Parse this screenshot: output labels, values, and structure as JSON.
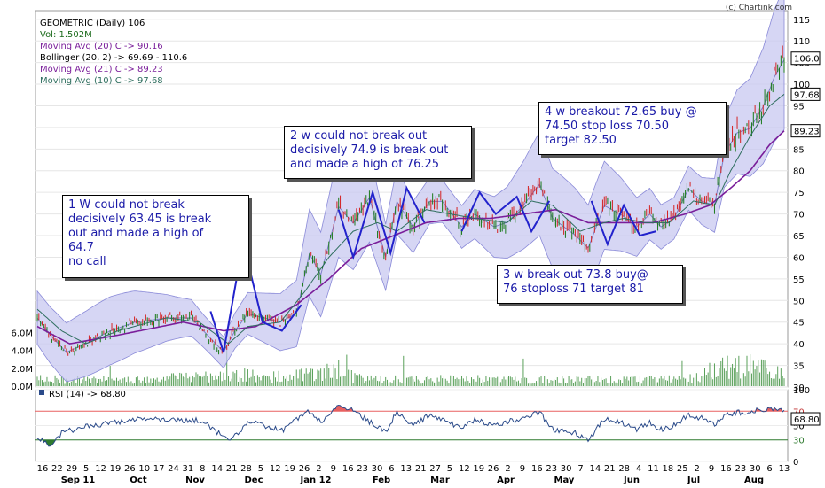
{
  "header": {
    "symbol_line": "GEOMETRIC (Daily) 106",
    "volume_line": "Vol: 1.502M",
    "ma20_line": "Moving Avg (20) C -> 90.16",
    "bollinger_line": "Bollinger (20, 2) -> 69.69 - 110.6",
    "ma21_line": "Moving Avg (21) C -> 89.23",
    "ma10_line": "Moving Avg (10) C -> 97.68",
    "copyright": "(c) Chartink.com",
    "rsi_line": "RSI (14) -> 68.80"
  },
  "colors": {
    "price_up": "#1a7a1a",
    "price_down": "#d42222",
    "band_fill": "#c8c8f0",
    "ma20": "#7e7ec8",
    "ma21": "#7a1e9a",
    "ma10": "#2e6e5e",
    "pattern": "#2222cc",
    "volume": "#5aa05a",
    "rsi_line": "#2a4a8a",
    "rsi_over": "#e86060",
    "rsi_under": "#2e7a2e"
  },
  "annotations": [
    {
      "name": "note-1w",
      "lines": [
        "1 W could not break",
        "decisively 63.45 is break",
        "out and made a high of",
        "64.7",
        "no call"
      ]
    },
    {
      "name": "note-2w",
      "lines": [
        "2 w could not break out",
        "decisively 74.9 is break out",
        "and made a high of 76.25"
      ]
    },
    {
      "name": "note-3w",
      "lines": [
        "3 w break out 73.8 buy@",
        "76 stoploss 71 target 81"
      ]
    },
    {
      "name": "note-4w",
      "lines": [
        "4 w breakout 72.65 buy @",
        "74.50 stop loss 70.50",
        "target 82.50"
      ]
    }
  ],
  "chart_data": [
    {
      "type": "line",
      "name": "price-panel",
      "x_tick_labels": [
        "16",
        "22",
        "29",
        "5",
        "12",
        "19",
        "26",
        "10",
        "17",
        "24",
        "31",
        "8",
        "14",
        "21",
        "28",
        "5",
        "12",
        "19",
        "26",
        "2",
        "9",
        "16",
        "23",
        "30",
        "6",
        "13",
        "21",
        "27",
        "5",
        "12",
        "19",
        "26",
        "2",
        "9",
        "16",
        "23",
        "30",
        "7",
        "14",
        "21",
        "28",
        "4",
        "11",
        "18",
        "25",
        "2",
        "9",
        "16",
        "23",
        "30",
        "6",
        "13"
      ],
      "month_labels": [
        "Sep 11",
        "Oct",
        "Nov",
        "Dec",
        "Jan 12",
        "Feb",
        "Mar",
        "Apr",
        "May",
        "Jun",
        "Jul",
        "Aug"
      ],
      "y_ticks": [
        30,
        35,
        40,
        45,
        50,
        55,
        60,
        65,
        70,
        75,
        80,
        85,
        90,
        95,
        100,
        105,
        110,
        115
      ],
      "ylim": [
        30,
        117
      ],
      "volume_ticks": [
        "0.0M",
        "2.0M",
        "4.0M",
        "6.0M"
      ],
      "volume_max": 8,
      "price_labels": {
        "close": "106.0",
        "ma10": "97.68",
        "ma21": "89.23"
      },
      "close_value": 106.0,
      "ma10_value": 97.68,
      "ma21_value": 89.23,
      "close_anchors": [
        [
          0,
          46
        ],
        [
          8,
          42
        ],
        [
          18,
          38
        ],
        [
          30,
          40
        ],
        [
          45,
          43
        ],
        [
          60,
          45
        ],
        [
          80,
          46
        ],
        [
          95,
          46
        ],
        [
          105,
          42
        ],
        [
          115,
          38
        ],
        [
          122,
          43
        ],
        [
          130,
          47
        ],
        [
          140,
          46
        ],
        [
          150,
          45
        ],
        [
          160,
          47
        ],
        [
          168,
          61
        ],
        [
          175,
          56
        ],
        [
          186,
          72
        ],
        [
          195,
          68
        ],
        [
          205,
          74
        ],
        [
          215,
          60
        ],
        [
          222,
          73
        ],
        [
          232,
          67
        ],
        [
          242,
          73
        ],
        [
          250,
          73
        ],
        [
          262,
          67
        ],
        [
          270,
          70
        ],
        [
          282,
          67
        ],
        [
          290,
          68
        ],
        [
          300,
          72
        ],
        [
          310,
          77
        ],
        [
          318,
          69
        ],
        [
          332,
          65
        ],
        [
          340,
          62
        ],
        [
          350,
          72
        ],
        [
          360,
          70
        ],
        [
          370,
          67
        ],
        [
          378,
          70
        ],
        [
          385,
          67
        ],
        [
          393,
          69
        ],
        [
          402,
          76
        ],
        [
          410,
          73
        ],
        [
          418,
          72
        ],
        [
          424,
          84
        ],
        [
          432,
          89
        ],
        [
          440,
          90
        ],
        [
          448,
          95
        ],
        [
          455,
          102
        ],
        [
          461,
          106
        ]
      ],
      "ma10_anchors": [
        [
          0,
          48
        ],
        [
          15,
          43
        ],
        [
          30,
          40
        ],
        [
          50,
          43
        ],
        [
          80,
          46
        ],
        [
          100,
          45
        ],
        [
          118,
          40
        ],
        [
          130,
          44
        ],
        [
          150,
          45
        ],
        [
          165,
          52
        ],
        [
          180,
          60
        ],
        [
          195,
          66
        ],
        [
          210,
          68
        ],
        [
          222,
          66
        ],
        [
          240,
          71
        ],
        [
          255,
          70
        ],
        [
          270,
          69
        ],
        [
          290,
          68
        ],
        [
          305,
          73
        ],
        [
          318,
          72
        ],
        [
          335,
          66
        ],
        [
          350,
          68
        ],
        [
          362,
          69
        ],
        [
          375,
          68
        ],
        [
          390,
          68
        ],
        [
          405,
          73
        ],
        [
          418,
          72
        ],
        [
          428,
          80
        ],
        [
          440,
          88
        ],
        [
          452,
          95
        ],
        [
          461,
          97.68
        ]
      ],
      "ma21_anchors": [
        [
          0,
          44
        ],
        [
          20,
          40
        ],
        [
          50,
          42
        ],
        [
          90,
          45
        ],
        [
          115,
          43
        ],
        [
          135,
          44
        ],
        [
          160,
          49
        ],
        [
          180,
          55
        ],
        [
          200,
          62
        ],
        [
          220,
          65
        ],
        [
          240,
          68
        ],
        [
          260,
          69
        ],
        [
          280,
          69
        ],
        [
          300,
          70
        ],
        [
          320,
          71
        ],
        [
          340,
          68
        ],
        [
          360,
          68
        ],
        [
          380,
          68
        ],
        [
          400,
          70
        ],
        [
          415,
          72
        ],
        [
          428,
          76
        ],
        [
          440,
          80
        ],
        [
          452,
          86
        ],
        [
          461,
          89.23
        ]
      ],
      "volume_anchors": [
        [
          0,
          1.0
        ],
        [
          20,
          0.8
        ],
        [
          60,
          0.8
        ],
        [
          100,
          1.2
        ],
        [
          120,
          1.6
        ],
        [
          140,
          1.2
        ],
        [
          170,
          1.5
        ],
        [
          180,
          1.9
        ],
        [
          200,
          1.0
        ],
        [
          240,
          0.9
        ],
        [
          300,
          0.9
        ],
        [
          350,
          0.8
        ],
        [
          400,
          0.9
        ],
        [
          425,
          2.5
        ],
        [
          440,
          3.0
        ],
        [
          455,
          1.7
        ],
        [
          461,
          1.5
        ]
      ],
      "pattern_lines": [
        {
          "name": "pattern-1w",
          "points": [
            [
              107,
              47.5
            ],
            [
              115,
              38
            ],
            [
              127,
              63.5
            ],
            [
              139,
              45
            ],
            [
              151,
              43
            ],
            [
              163,
              49
            ]
          ]
        },
        {
          "name": "pattern-2w",
          "points": [
            [
              186,
              71
            ],
            [
              195,
              60
            ],
            [
              207,
              75
            ],
            [
              218,
              61
            ],
            [
              228,
              76
            ],
            [
              239,
              68
            ]
          ]
        },
        {
          "name": "pattern-3w",
          "points": [
            [
              262,
              66
            ],
            [
              273,
              75
            ],
            [
              283,
              70
            ],
            [
              296,
              74
            ],
            [
              305,
              66
            ],
            [
              316,
              73
            ]
          ]
        },
        {
          "name": "pattern-4w",
          "points": [
            [
              342,
              73
            ],
            [
              352,
              63
            ],
            [
              362,
              72
            ],
            [
              372,
              65
            ],
            [
              382,
              66
            ]
          ]
        }
      ]
    },
    {
      "type": "line",
      "name": "rsi-panel",
      "series": [
        {
          "name": "RSI (14)",
          "value": 68.8
        }
      ],
      "y_ticks": [
        0,
        30,
        50,
        70,
        100
      ],
      "ylim": [
        0,
        100
      ],
      "levels": [
        30,
        70
      ],
      "last_label": "68.80",
      "rsi_anchors": [
        [
          0,
          35
        ],
        [
          8,
          20
        ],
        [
          15,
          40
        ],
        [
          30,
          48
        ],
        [
          50,
          55
        ],
        [
          70,
          60
        ],
        [
          85,
          57
        ],
        [
          100,
          58
        ],
        [
          112,
          40
        ],
        [
          120,
          30
        ],
        [
          130,
          55
        ],
        [
          140,
          50
        ],
        [
          152,
          43
        ],
        [
          160,
          58
        ],
        [
          168,
          70
        ],
        [
          175,
          55
        ],
        [
          185,
          75
        ],
        [
          195,
          72
        ],
        [
          205,
          55
        ],
        [
          215,
          40
        ],
        [
          222,
          70
        ],
        [
          232,
          50
        ],
        [
          242,
          65
        ],
        [
          250,
          60
        ],
        [
          262,
          45
        ],
        [
          270,
          58
        ],
        [
          282,
          50
        ],
        [
          290,
          55
        ],
        [
          300,
          60
        ],
        [
          310,
          68
        ],
        [
          318,
          45
        ],
        [
          332,
          40
        ],
        [
          340,
          28
        ],
        [
          350,
          60
        ],
        [
          360,
          55
        ],
        [
          370,
          45
        ],
        [
          378,
          55
        ],
        [
          385,
          45
        ],
        [
          393,
          50
        ],
        [
          402,
          65
        ],
        [
          410,
          60
        ],
        [
          418,
          52
        ],
        [
          424,
          65
        ],
        [
          432,
          68
        ],
        [
          440,
          70
        ],
        [
          448,
          72
        ],
        [
          455,
          75
        ],
        [
          461,
          68.8
        ]
      ]
    }
  ]
}
